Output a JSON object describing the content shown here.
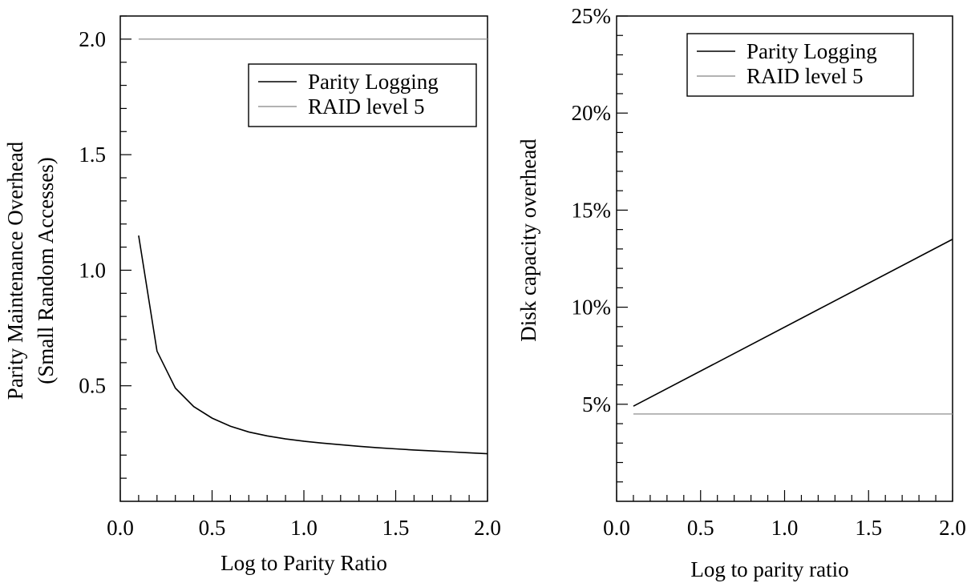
{
  "colors": {
    "parity_logging": "#000000",
    "raid5": "#999999",
    "frame": "#000000"
  },
  "chart_data": [
    {
      "type": "line",
      "title": "",
      "xlabel": "Log to Parity Ratio",
      "ylabel_lines": [
        "Parity Maintenance Overhead",
        "(Small Random Accesses)"
      ],
      "xlim": [
        0.0,
        2.0
      ],
      "ylim": [
        0.0,
        2.1
      ],
      "x_ticks": [
        0.0,
        0.5,
        1.0,
        1.5,
        2.0
      ],
      "x_tick_labels": [
        "0.0",
        "0.5",
        "1.0",
        "1.5",
        "2.0"
      ],
      "y_ticks": [
        0.5,
        1.0,
        1.5,
        2.0
      ],
      "y_tick_labels": [
        "0.5",
        "1.0",
        "1.5",
        "2.0"
      ],
      "legend_position": "top-right",
      "series": [
        {
          "name": "Parity Logging",
          "color": "#000000",
          "x": [
            0.1,
            0.2,
            0.3,
            0.4,
            0.5,
            0.6,
            0.7,
            0.8,
            0.9,
            1.0,
            1.1,
            1.2,
            1.3,
            1.4,
            1.5,
            1.6,
            1.7,
            1.8,
            1.9,
            2.0
          ],
          "y": [
            1.15,
            0.65,
            0.49,
            0.41,
            0.36,
            0.325,
            0.3,
            0.283,
            0.27,
            0.26,
            0.252,
            0.245,
            0.238,
            0.232,
            0.227,
            0.222,
            0.218,
            0.214,
            0.21,
            0.206
          ]
        },
        {
          "name": "RAID level 5",
          "color": "#999999",
          "x": [
            0.1,
            2.0
          ],
          "y": [
            2.0,
            2.0
          ]
        }
      ]
    },
    {
      "type": "line",
      "title": "",
      "xlabel": "Log to parity ratio",
      "ylabel": "Disk capacity overhead",
      "xlim": [
        0.0,
        2.0
      ],
      "ylim": [
        0,
        25
      ],
      "x_ticks": [
        0.0,
        0.5,
        1.0,
        1.5,
        2.0
      ],
      "x_tick_labels": [
        "0.0",
        "0.5",
        "1.0",
        "1.5",
        "2.0"
      ],
      "y_ticks": [
        5,
        10,
        15,
        20,
        25
      ],
      "y_tick_labels": [
        "5%",
        "10%",
        "15%",
        "20%",
        "25%"
      ],
      "legend_position": "top-right",
      "series": [
        {
          "name": "Parity Logging",
          "color": "#000000",
          "x": [
            0.1,
            2.0
          ],
          "y": [
            4.9,
            13.5
          ]
        },
        {
          "name": "RAID level 5",
          "color": "#999999",
          "x": [
            0.1,
            2.0
          ],
          "y": [
            4.5,
            4.5
          ]
        }
      ]
    }
  ]
}
